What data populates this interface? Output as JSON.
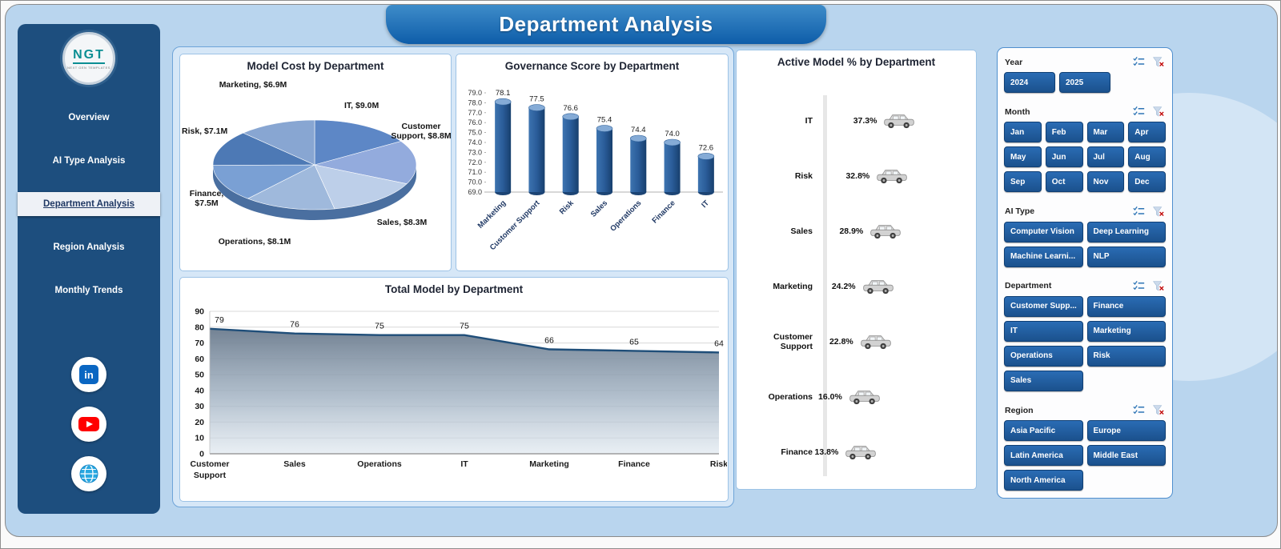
{
  "app": {
    "title": "Department Analysis"
  },
  "sidebar": {
    "logo": {
      "text": "NGT",
      "subtext": "NEXT GEN TEMPLATES"
    },
    "items": [
      {
        "label": "Overview",
        "active": false
      },
      {
        "label": "AI Type Analysis",
        "active": false
      },
      {
        "label": "Department Analysis",
        "active": true
      },
      {
        "label": "Region Analysis",
        "active": false
      },
      {
        "label": "Monthly Trends",
        "active": false
      }
    ],
    "social": [
      {
        "name": "linkedin-icon"
      },
      {
        "name": "youtube-icon"
      },
      {
        "name": "website-icon"
      }
    ]
  },
  "chart_data": [
    {
      "type": "pie",
      "title": "Model Cost by Department",
      "unit": "$M",
      "categories": [
        "IT",
        "Customer Support",
        "Sales",
        "Operations",
        "Finance",
        "Risk",
        "Marketing"
      ],
      "values": [
        9.0,
        8.8,
        8.3,
        8.1,
        7.5,
        7.1,
        6.9
      ],
      "labels_display": [
        "IT,  $9.0M",
        "Customer Support, $8.8M",
        "Sales, $8.3M",
        "Operations, $8.1M",
        "Finance, $7.5M",
        "Risk,  $7.1M",
        "Marketing, $6.9M"
      ],
      "colors": [
        "#5d87c6",
        "#93abdd",
        "#bdcfe9",
        "#9fb9dc",
        "#7aa0d4",
        "#4d79b5",
        "#88a6d2"
      ]
    },
    {
      "type": "bar",
      "title": "Governance Score by Department",
      "categories": [
        "Marketing",
        "Customer Support",
        "Risk",
        "Sales",
        "Operations",
        "Finance",
        "IT"
      ],
      "values": [
        78.1,
        77.5,
        76.6,
        75.4,
        74.4,
        74.0,
        72.6
      ],
      "ylim": [
        69.0,
        79.0
      ],
      "ytick_step": 1.0,
      "bar_color": "#2e5f9e"
    },
    {
      "type": "bar",
      "orientation": "horizontal",
      "title": "Active Model % by Department",
      "categories": [
        "IT",
        "Risk",
        "Sales",
        "Marketing",
        "Customer Support",
        "Operations",
        "Finance"
      ],
      "values": [
        37.3,
        32.8,
        28.9,
        24.2,
        22.8,
        16.0,
        13.8
      ],
      "value_suffix": "%",
      "marker_icon": "car-icon"
    },
    {
      "type": "area",
      "title": "Total Model by Department",
      "categories": [
        "Customer Support",
        "Sales",
        "Operations",
        "IT",
        "Marketing",
        "Finance",
        "Risk"
      ],
      "values": [
        79,
        76,
        75,
        75,
        66,
        65,
        64
      ],
      "ylim": [
        0,
        90
      ],
      "ytick_step": 10,
      "line_color": "#1f4e79"
    }
  ],
  "slicers": [
    {
      "title": "Year",
      "columns": 3,
      "options": [
        "2024",
        "2025"
      ]
    },
    {
      "title": "Month",
      "columns": 4,
      "options": [
        "Jan",
        "Feb",
        "Mar",
        "Apr",
        "May",
        "Jun",
        "Jul",
        "Aug",
        "Sep",
        "Oct",
        "Nov",
        "Dec"
      ]
    },
    {
      "title": "AI Type",
      "columns": 2,
      "options": [
        "Computer Vision",
        "Deep Learning",
        "Machine Learni...",
        "NLP"
      ]
    },
    {
      "title": "Department",
      "columns": 2,
      "options": [
        "Customer Supp...",
        "Finance",
        "IT",
        "Marketing",
        "Operations",
        "Risk",
        "Sales"
      ]
    },
    {
      "title": "Region",
      "columns": 2,
      "options": [
        "Asia Pacific",
        "Europe",
        "Latin America",
        "Middle East",
        "North America"
      ]
    }
  ],
  "slicer_icons": {
    "multi_select": "multi-select-icon",
    "clear_filter": "clear-filter-icon"
  },
  "colors": {
    "accent": "#1f5c9e",
    "sidebar": "#1d4e7e",
    "header": "#0e5da9",
    "card_border": "#9dc3e6"
  }
}
